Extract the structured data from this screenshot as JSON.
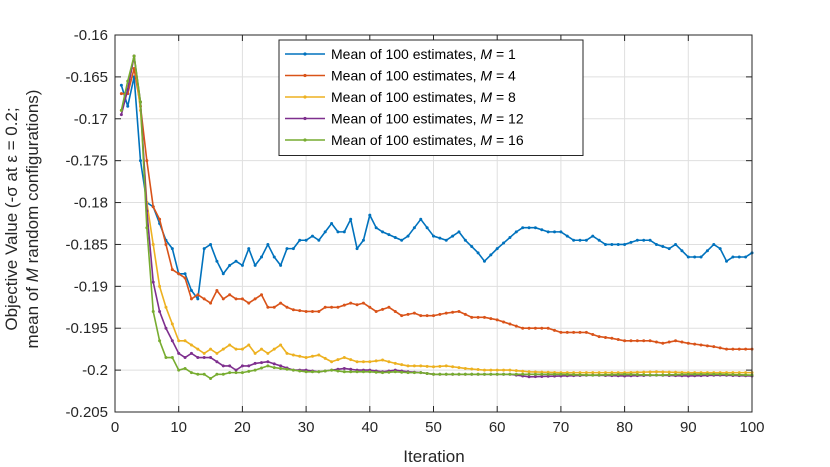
{
  "chart_data": {
    "type": "line",
    "title": "",
    "xlabel": "Iteration",
    "ylabel_line1": "Objective Value (-σ at ε = 0.2;",
    "ylabel_line2": "mean of M random configurations)",
    "xlim": [
      0,
      100
    ],
    "ylim": [
      -0.205,
      -0.16
    ],
    "xticks": [
      0,
      10,
      20,
      30,
      40,
      50,
      60,
      70,
      80,
      90,
      100
    ],
    "yticks": [
      -0.205,
      -0.2,
      -0.195,
      -0.19,
      -0.185,
      -0.18,
      -0.175,
      -0.17,
      -0.165,
      -0.16
    ],
    "xtick_labels": [
      "0",
      "10",
      "20",
      "30",
      "40",
      "50",
      "60",
      "70",
      "80",
      "90",
      "100"
    ],
    "ytick_labels": [
      "-0.205",
      "-0.2",
      "-0.195",
      "-0.19",
      "-0.185",
      "-0.18",
      "-0.175",
      "-0.17",
      "-0.165",
      "-0.16"
    ],
    "grid": true,
    "legend_position": "top-center",
    "series": [
      {
        "name": "Mean of 100 estimates, M = 1",
        "legend_prefix": "Mean of 100 estimates, ",
        "legend_var": "M",
        "legend_suffix": " = 1",
        "color": "#0072BD",
        "key": [
          [
            1,
            -0.166
          ],
          [
            2,
            -0.1685
          ],
          [
            3,
            -0.165
          ],
          [
            4,
            -0.175
          ],
          [
            5,
            -0.18
          ],
          [
            6,
            -0.1805
          ],
          [
            7,
            -0.1825
          ],
          [
            8,
            -0.1845
          ],
          [
            9,
            -0.1855
          ],
          [
            10,
            -0.1885
          ],
          [
            11,
            -0.1885
          ],
          [
            12,
            -0.1905
          ],
          [
            13,
            -0.1915
          ],
          [
            14,
            -0.1855
          ],
          [
            15,
            -0.185
          ],
          [
            16,
            -0.187
          ],
          [
            17,
            -0.1885
          ],
          [
            18,
            -0.1875
          ],
          [
            19,
            -0.187
          ],
          [
            20,
            -0.1875
          ],
          [
            21,
            -0.1855
          ],
          [
            22,
            -0.1875
          ],
          [
            23,
            -0.1865
          ],
          [
            24,
            -0.185
          ],
          [
            25,
            -0.1865
          ],
          [
            26,
            -0.1875
          ],
          [
            27,
            -0.1855
          ],
          [
            28,
            -0.1855
          ],
          [
            29,
            -0.1845
          ],
          [
            30,
            -0.1845
          ],
          [
            31,
            -0.184
          ],
          [
            32,
            -0.1845
          ],
          [
            33,
            -0.1835
          ],
          [
            34,
            -0.1825
          ],
          [
            35,
            -0.1835
          ],
          [
            36,
            -0.1835
          ],
          [
            37,
            -0.182
          ],
          [
            38,
            -0.1855
          ],
          [
            39,
            -0.1845
          ],
          [
            40,
            -0.1815
          ],
          [
            41,
            -0.183
          ],
          [
            42,
            -0.1835
          ],
          [
            45,
            -0.1845
          ],
          [
            46,
            -0.184
          ],
          [
            47,
            -0.183
          ],
          [
            48,
            -0.182
          ],
          [
            50,
            -0.184
          ],
          [
            52,
            -0.1845
          ],
          [
            54,
            -0.1835
          ],
          [
            55,
            -0.1845
          ],
          [
            57,
            -0.186
          ],
          [
            58,
            -0.187
          ],
          [
            60,
            -0.1855
          ],
          [
            63,
            -0.1835
          ],
          [
            64,
            -0.183
          ],
          [
            66,
            -0.183
          ],
          [
            68,
            -0.1835
          ],
          [
            70,
            -0.1835
          ],
          [
            72,
            -0.1845
          ],
          [
            74,
            -0.1845
          ],
          [
            75,
            -0.184
          ],
          [
            77,
            -0.185
          ],
          [
            80,
            -0.185
          ],
          [
            82,
            -0.1845
          ],
          [
            84,
            -0.1845
          ],
          [
            85,
            -0.185
          ],
          [
            87,
            -0.1855
          ],
          [
            88,
            -0.185
          ],
          [
            90,
            -0.1865
          ],
          [
            92,
            -0.1865
          ],
          [
            94,
            -0.185
          ],
          [
            95,
            -0.1855
          ],
          [
            96,
            -0.187
          ],
          [
            97,
            -0.1865
          ],
          [
            98,
            -0.1865
          ],
          [
            99,
            -0.1865
          ],
          [
            100,
            -0.186
          ]
        ]
      },
      {
        "name": "Mean of 100 estimates, M = 4",
        "legend_prefix": "Mean of 100 estimates, ",
        "legend_var": "M",
        "legend_suffix": " = 4",
        "color": "#D95319",
        "key": [
          [
            1,
            -0.167
          ],
          [
            2,
            -0.167
          ],
          [
            3,
            -0.164
          ],
          [
            4,
            -0.1685
          ],
          [
            5,
            -0.175
          ],
          [
            6,
            -0.1805
          ],
          [
            7,
            -0.182
          ],
          [
            8,
            -0.185
          ],
          [
            9,
            -0.188
          ],
          [
            10,
            -0.1885
          ],
          [
            11,
            -0.189
          ],
          [
            12,
            -0.1915
          ],
          [
            13,
            -0.191
          ],
          [
            14,
            -0.1915
          ],
          [
            15,
            -0.192
          ],
          [
            16,
            -0.1905
          ],
          [
            17,
            -0.1915
          ],
          [
            18,
            -0.191
          ],
          [
            19,
            -0.1915
          ],
          [
            20,
            -0.1915
          ],
          [
            21,
            -0.192
          ],
          [
            22,
            -0.1915
          ],
          [
            23,
            -0.191
          ],
          [
            24,
            -0.1925
          ],
          [
            25,
            -0.1925
          ],
          [
            26,
            -0.192
          ],
          [
            27,
            -0.1925
          ],
          [
            28,
            -0.1928
          ],
          [
            30,
            -0.193
          ],
          [
            32,
            -0.193
          ],
          [
            33,
            -0.1925
          ],
          [
            35,
            -0.1925
          ],
          [
            37,
            -0.192
          ],
          [
            38,
            -0.1922
          ],
          [
            39,
            -0.192
          ],
          [
            40,
            -0.1925
          ],
          [
            41,
            -0.193
          ],
          [
            43,
            -0.1925
          ],
          [
            45,
            -0.1935
          ],
          [
            47,
            -0.1932
          ],
          [
            48,
            -0.1935
          ],
          [
            50,
            -0.1935
          ],
          [
            52,
            -0.1932
          ],
          [
            54,
            -0.193
          ],
          [
            56,
            -0.1937
          ],
          [
            58,
            -0.1937
          ],
          [
            60,
            -0.194
          ],
          [
            62,
            -0.1945
          ],
          [
            64,
            -0.195
          ],
          [
            66,
            -0.195
          ],
          [
            68,
            -0.195
          ],
          [
            70,
            -0.1955
          ],
          [
            72,
            -0.1955
          ],
          [
            74,
            -0.1955
          ],
          [
            76,
            -0.196
          ],
          [
            78,
            -0.1962
          ],
          [
            80,
            -0.1965
          ],
          [
            82,
            -0.1965
          ],
          [
            84,
            -0.1965
          ],
          [
            86,
            -0.1968
          ],
          [
            88,
            -0.1965
          ],
          [
            90,
            -0.1968
          ],
          [
            92,
            -0.197
          ],
          [
            94,
            -0.1972
          ],
          [
            96,
            -0.1975
          ],
          [
            98,
            -0.1975
          ],
          [
            100,
            -0.1975
          ]
        ]
      },
      {
        "name": "Mean of 100 estimates, M = 8",
        "legend_prefix": "Mean of 100 estimates, ",
        "legend_var": "M",
        "legend_suffix": " = 8",
        "color": "#EDB120",
        "key": [
          [
            1,
            -0.169
          ],
          [
            2,
            -0.1665
          ],
          [
            3,
            -0.1625
          ],
          [
            4,
            -0.169
          ],
          [
            5,
            -0.18
          ],
          [
            6,
            -0.185
          ],
          [
            7,
            -0.19
          ],
          [
            8,
            -0.1925
          ],
          [
            9,
            -0.1945
          ],
          [
            10,
            -0.1965
          ],
          [
            11,
            -0.1965
          ],
          [
            12,
            -0.197
          ],
          [
            13,
            -0.1975
          ],
          [
            14,
            -0.198
          ],
          [
            15,
            -0.1975
          ],
          [
            16,
            -0.198
          ],
          [
            17,
            -0.1975
          ],
          [
            18,
            -0.197
          ],
          [
            19,
            -0.1975
          ],
          [
            20,
            -0.1975
          ],
          [
            21,
            -0.197
          ],
          [
            22,
            -0.198
          ],
          [
            23,
            -0.1975
          ],
          [
            24,
            -0.198
          ],
          [
            25,
            -0.1975
          ],
          [
            26,
            -0.197
          ],
          [
            27,
            -0.198
          ],
          [
            28,
            -0.1982
          ],
          [
            30,
            -0.1985
          ],
          [
            32,
            -0.1982
          ],
          [
            34,
            -0.199
          ],
          [
            36,
            -0.1985
          ],
          [
            38,
            -0.199
          ],
          [
            40,
            -0.199
          ],
          [
            42,
            -0.1988
          ],
          [
            44,
            -0.1992
          ],
          [
            46,
            -0.1995
          ],
          [
            48,
            -0.1995
          ],
          [
            50,
            -0.1996
          ],
          [
            52,
            -0.1995
          ],
          [
            55,
            -0.1998
          ],
          [
            58,
            -0.2
          ],
          [
            60,
            -0.2
          ],
          [
            62,
            -0.2
          ],
          [
            65,
            -0.2002
          ],
          [
            70,
            -0.2003
          ],
          [
            75,
            -0.2003
          ],
          [
            80,
            -0.2003
          ],
          [
            85,
            -0.2002
          ],
          [
            90,
            -0.2003
          ],
          [
            95,
            -0.2003
          ],
          [
            100,
            -0.2003
          ]
        ]
      },
      {
        "name": "Mean of 100 estimates, M = 12",
        "legend_prefix": "Mean of 100 estimates, ",
        "legend_var": "M",
        "legend_suffix": " = 12",
        "color": "#7E2F8E",
        "key": [
          [
            1,
            -0.1695
          ],
          [
            2,
            -0.1665
          ],
          [
            3,
            -0.1625
          ],
          [
            4,
            -0.168
          ],
          [
            5,
            -0.181
          ],
          [
            6,
            -0.1895
          ],
          [
            7,
            -0.193
          ],
          [
            8,
            -0.195
          ],
          [
            9,
            -0.1965
          ],
          [
            10,
            -0.198
          ],
          [
            11,
            -0.1985
          ],
          [
            12,
            -0.198
          ],
          [
            13,
            -0.1985
          ],
          [
            14,
            -0.1985
          ],
          [
            15,
            -0.1985
          ],
          [
            16,
            -0.199
          ],
          [
            17,
            -0.1995
          ],
          [
            18,
            -0.1995
          ],
          [
            19,
            -0.2
          ],
          [
            20,
            -0.1995
          ],
          [
            21,
            -0.1995
          ],
          [
            22,
            -0.1992
          ],
          [
            24,
            -0.199
          ],
          [
            26,
            -0.1995
          ],
          [
            28,
            -0.2
          ],
          [
            30,
            -0.2
          ],
          [
            32,
            -0.2002
          ],
          [
            34,
            -0.2
          ],
          [
            36,
            -0.1998
          ],
          [
            38,
            -0.2
          ],
          [
            40,
            -0.2
          ],
          [
            42,
            -0.2002
          ],
          [
            44,
            -0.2
          ],
          [
            46,
            -0.2002
          ],
          [
            48,
            -0.2003
          ],
          [
            50,
            -0.2005
          ],
          [
            55,
            -0.2005
          ],
          [
            60,
            -0.2005
          ],
          [
            62,
            -0.2005
          ],
          [
            65,
            -0.2008
          ],
          [
            70,
            -0.2007
          ],
          [
            75,
            -0.2006
          ],
          [
            80,
            -0.2007
          ],
          [
            85,
            -0.2006
          ],
          [
            90,
            -0.2007
          ],
          [
            95,
            -0.2006
          ],
          [
            100,
            -0.2007
          ]
        ]
      },
      {
        "name": "Mean of 100 estimates, M = 16",
        "legend_prefix": "Mean of 100 estimates, ",
        "legend_var": "M",
        "legend_suffix": " = 16",
        "color": "#77AC30",
        "key": [
          [
            1,
            -0.169
          ],
          [
            2,
            -0.1655
          ],
          [
            3,
            -0.1625
          ],
          [
            4,
            -0.168
          ],
          [
            5,
            -0.183
          ],
          [
            6,
            -0.193
          ],
          [
            7,
            -0.1965
          ],
          [
            8,
            -0.1985
          ],
          [
            9,
            -0.1985
          ],
          [
            10,
            -0.2
          ],
          [
            11,
            -0.1998
          ],
          [
            12,
            -0.2003
          ],
          [
            13,
            -0.2005
          ],
          [
            14,
            -0.2005
          ],
          [
            15,
            -0.201
          ],
          [
            16,
            -0.2005
          ],
          [
            17,
            -0.2005
          ],
          [
            18,
            -0.2003
          ],
          [
            19,
            -0.2003
          ],
          [
            20,
            -0.2003
          ],
          [
            22,
            -0.2
          ],
          [
            24,
            -0.1995
          ],
          [
            25,
            -0.1997
          ],
          [
            26,
            -0.1998
          ],
          [
            28,
            -0.2
          ],
          [
            30,
            -0.2002
          ],
          [
            32,
            -0.2002
          ],
          [
            34,
            -0.2
          ],
          [
            36,
            -0.2002
          ],
          [
            38,
            -0.2002
          ],
          [
            40,
            -0.2002
          ],
          [
            42,
            -0.2003
          ],
          [
            44,
            -0.2002
          ],
          [
            46,
            -0.2003
          ],
          [
            48,
            -0.2003
          ],
          [
            50,
            -0.2005
          ],
          [
            55,
            -0.2005
          ],
          [
            60,
            -0.2005
          ],
          [
            65,
            -0.2005
          ],
          [
            70,
            -0.2005
          ],
          [
            75,
            -0.2006
          ],
          [
            80,
            -0.2005
          ],
          [
            85,
            -0.2006
          ],
          [
            90,
            -0.2005
          ],
          [
            95,
            -0.2005
          ],
          [
            100,
            -0.2006
          ]
        ]
      }
    ]
  }
}
